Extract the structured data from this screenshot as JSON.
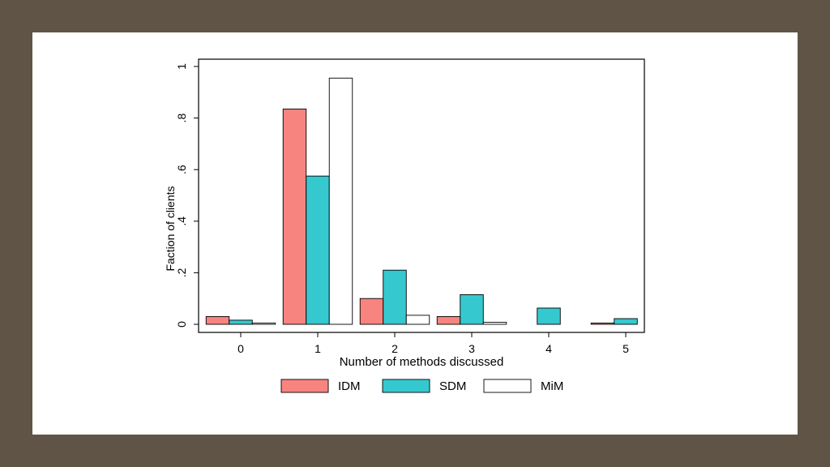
{
  "chart_data": {
    "type": "bar",
    "title": "",
    "xlabel": "Number of methods discussed",
    "ylabel": "Faction of clients",
    "categories": [
      "0",
      "1",
      "2",
      "3",
      "4",
      "5"
    ],
    "ylim": [
      0,
      1
    ],
    "yticks": [
      0,
      0.2,
      0.4,
      0.6,
      0.8,
      1
    ],
    "ytick_labels": [
      "0",
      ".2",
      ".4",
      ".6",
      ".8",
      "1"
    ],
    "grid": false,
    "legend_position": "bottom",
    "series": [
      {
        "name": "IDM",
        "color": "#f8847f",
        "values": [
          0.03,
          0.835,
          0.1,
          0.03,
          0.0,
          0.005
        ]
      },
      {
        "name": "SDM",
        "color": "#35c9cf",
        "values": [
          0.016,
          0.575,
          0.21,
          0.115,
          0.063,
          0.022
        ]
      },
      {
        "name": "MiM",
        "color": "#ffffff",
        "values": [
          0.005,
          0.955,
          0.035,
          0.008,
          0.0,
          0.0
        ]
      }
    ]
  }
}
